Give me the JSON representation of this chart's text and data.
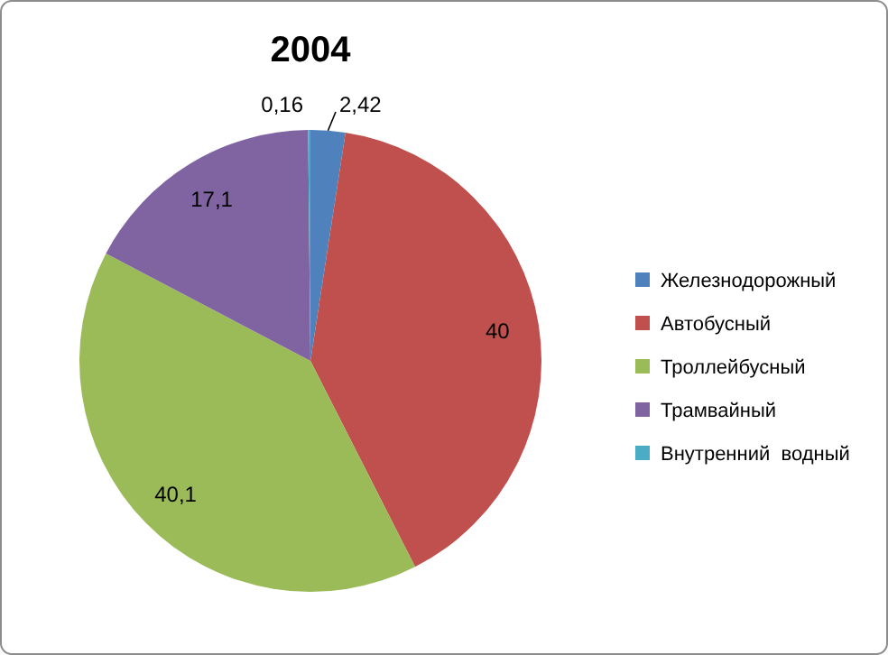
{
  "chart_data": {
    "type": "pie",
    "title": "2004",
    "categories": [
      "Железнодорожный",
      "Автобусный",
      "Троллейбусный",
      "Трамвайный",
      "Внутренний  водный"
    ],
    "values": [
      2.42,
      40,
      40.1,
      17.1,
      0.16
    ],
    "value_labels": [
      "2,42",
      "40",
      "40,1",
      "17,1",
      "0,16"
    ],
    "colors": [
      "#4f81bd",
      "#c0504d",
      "#9bbb59",
      "#8064a2",
      "#4bacc6"
    ],
    "legend": "right"
  }
}
